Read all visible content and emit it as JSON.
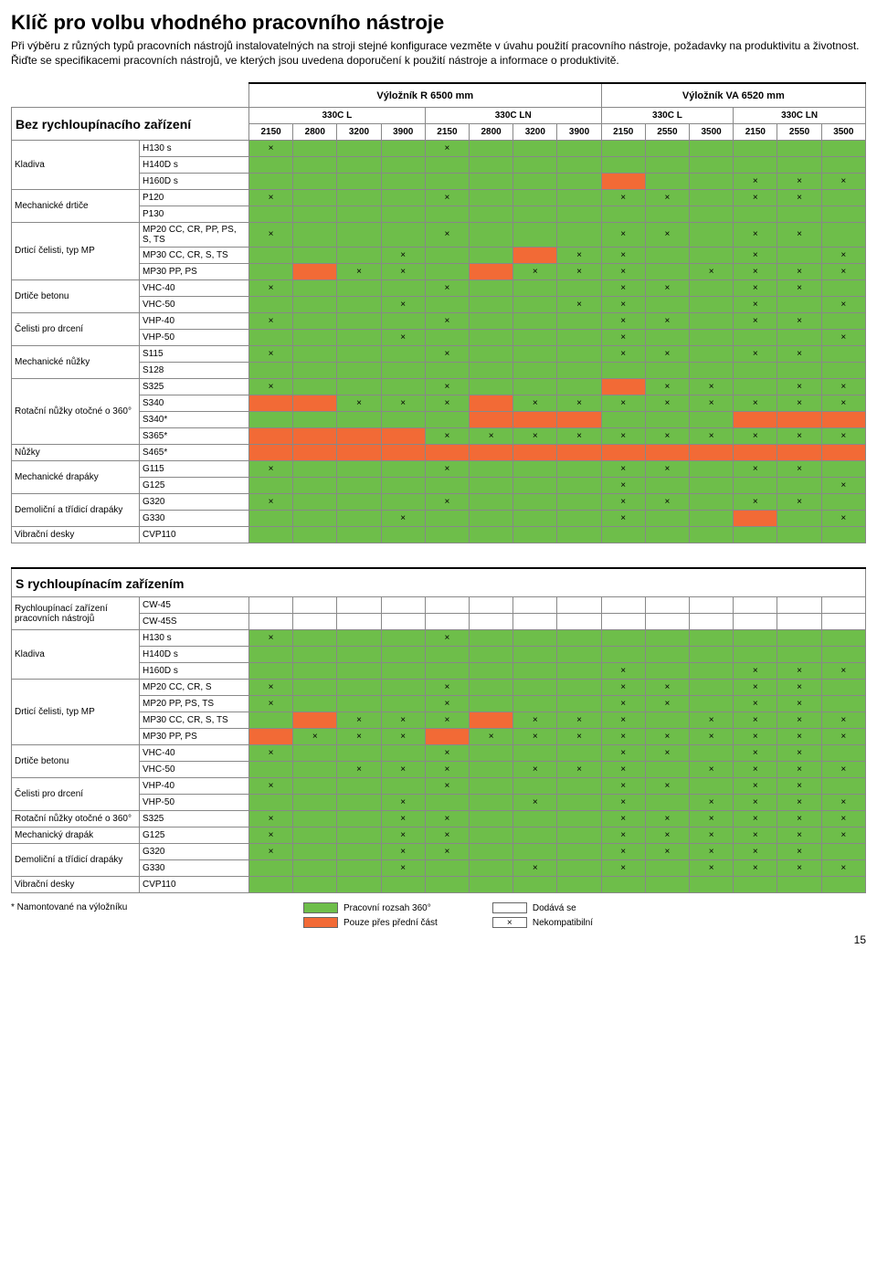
{
  "title": "Klíč pro volbu vhodného pracovního nástroje",
  "intro": "Při výběru z různých typů pracovních nástrojů instalovatelných na stroji stejné konfigurace vezměte v úvahu použití pracovního nástroje, požadavky na produktivitu a životnost. Řiďte se specifikacemi pracovních nástrojů, ve kterých jsou uvedena doporučení k použití nástroje a informace o produktivitě.",
  "colors": {
    "green": "#6ebe4a",
    "orange": "#f26a36",
    "white": "#ffffff",
    "header_gray": "#d9d9d9"
  },
  "boom_headers": [
    "Výložník R 6500 mm",
    "Výložník VA 6520 mm"
  ],
  "arm_headers": [
    "330C L",
    "330C LN",
    "330C L",
    "330C LN"
  ],
  "mm_values": [
    "2150",
    "2800",
    "3200",
    "3900",
    "2150",
    "2800",
    "3200",
    "3900",
    "2150",
    "2550",
    "3500",
    "2150",
    "2550",
    "3500"
  ],
  "mm_label": "mm",
  "section1_title": "Bez rychloupínacího zařízení",
  "section2_title": "S rychloupínacím zařízením",
  "table1_rows": [
    {
      "cat": "Kladiva",
      "tool": "H130 s",
      "cells": [
        "gx",
        "g",
        "g",
        "g",
        "gx",
        "g",
        "g",
        "g",
        "g",
        "g",
        "g",
        "g",
        "g",
        "g"
      ]
    },
    {
      "cat": "",
      "tool": "H140D s",
      "cells": [
        "g",
        "g",
        "g",
        "g",
        "g",
        "g",
        "g",
        "g",
        "g",
        "g",
        "g",
        "g",
        "g",
        "g"
      ]
    },
    {
      "cat": "",
      "tool": "H160D s",
      "cells": [
        "g",
        "g",
        "g",
        "g",
        "g",
        "g",
        "g",
        "g",
        "o",
        "g",
        "g",
        "gx",
        "gx",
        "gx"
      ],
      "lastx": [
        "gx"
      ]
    },
    {
      "cat": "Mechanické drtiče",
      "tool": "P120",
      "cells": [
        "gx",
        "g",
        "g",
        "g",
        "gx",
        "g",
        "g",
        "g",
        "gx",
        "gx",
        "g",
        "gx",
        "gx",
        "g"
      ]
    },
    {
      "cat": "",
      "tool": "P130",
      "cells": [
        "g",
        "g",
        "g",
        "g",
        "g",
        "g",
        "g",
        "g",
        "g",
        "g",
        "g",
        "g",
        "g",
        "g"
      ]
    },
    {
      "cat": "Drticí čelisti, typ MP",
      "tool": "MP20 CC, CR, PP, PS, S, TS",
      "cells": [
        "gx",
        "g",
        "g",
        "g",
        "gx",
        "g",
        "g",
        "g",
        "gx",
        "gx",
        "g",
        "gx",
        "gx",
        "g"
      ]
    },
    {
      "cat": "",
      "tool": "MP30 CC, CR, S, TS",
      "cells": [
        "g",
        "g",
        "g",
        "gx",
        "g",
        "g",
        "o",
        "gx",
        "gx",
        "g",
        "g",
        "gx",
        "g",
        "gx"
      ]
    },
    {
      "cat": "",
      "tool": "MP30 PP, PS",
      "cells": [
        "g",
        "o",
        "gx",
        "gx",
        "g",
        "o",
        "gx",
        "gx",
        "gx",
        "g",
        "gx",
        "gx",
        "gx",
        "gx"
      ]
    },
    {
      "cat": "Drtiče betonu",
      "tool": "VHC-40",
      "cells": [
        "gx",
        "g",
        "g",
        "g",
        "gx",
        "g",
        "g",
        "g",
        "gx",
        "gx",
        "g",
        "gx",
        "gx",
        "g"
      ]
    },
    {
      "cat": "",
      "tool": "VHC-50",
      "cells": [
        "g",
        "g",
        "g",
        "gx",
        "g",
        "g",
        "g",
        "gx",
        "gx",
        "g",
        "g",
        "gx",
        "g",
        "gx"
      ]
    },
    {
      "cat": "Čelisti pro drcení",
      "tool": "VHP-40",
      "cells": [
        "gx",
        "g",
        "g",
        "g",
        "gx",
        "g",
        "g",
        "g",
        "gx",
        "gx",
        "g",
        "gx",
        "gx",
        "g"
      ]
    },
    {
      "cat": "",
      "tool": "VHP-50",
      "cells": [
        "g",
        "g",
        "g",
        "gx",
        "g",
        "g",
        "g",
        "g",
        "gx",
        "g",
        "g",
        "g",
        "g",
        "gx"
      ]
    },
    {
      "cat": "Mechanické nůžky",
      "tool": "S115",
      "cells": [
        "gx",
        "g",
        "g",
        "g",
        "gx",
        "g",
        "g",
        "g",
        "gx",
        "gx",
        "g",
        "gx",
        "gx",
        "g"
      ]
    },
    {
      "cat": "",
      "tool": "S128",
      "cells": [
        "g",
        "g",
        "g",
        "g",
        "g",
        "g",
        "g",
        "g",
        "g",
        "g",
        "g",
        "g",
        "g",
        "g"
      ]
    },
    {
      "cat": "Rotační nůžky otočné o 360°",
      "tool": "S325",
      "cells": [
        "gx",
        "g",
        "g",
        "g",
        "gx",
        "g",
        "g",
        "g",
        "o",
        "gx",
        "gx",
        "g",
        "gx",
        "gx"
      ]
    },
    {
      "cat": "",
      "tool": "S340",
      "cells": [
        "o",
        "o",
        "gx",
        "gx",
        "gx",
        "o",
        "gx",
        "gx",
        "gx",
        "gx",
        "gx",
        "gx",
        "gx",
        "gx"
      ]
    },
    {
      "cat": "",
      "tool": "S340*",
      "cells": [
        "g",
        "g",
        "g",
        "g",
        "g",
        "o",
        "o",
        "o",
        "g",
        "g",
        "g",
        "o",
        "o",
        "o"
      ]
    },
    {
      "cat": "",
      "tool": "S365*",
      "cells": [
        "o",
        "o",
        "o",
        "o",
        "gx",
        "gx",
        "gx",
        "gx",
        "gx",
        "gx",
        "gx",
        "gx",
        "gx",
        "gx"
      ]
    },
    {
      "cat": "Nůžky",
      "tool": "S465*",
      "cells": [
        "o",
        "o",
        "o",
        "o",
        "o",
        "o",
        "o",
        "o",
        "o",
        "o",
        "o",
        "o",
        "o",
        "o"
      ]
    },
    {
      "cat": "Mechanické drapáky",
      "tool": "G115",
      "cells": [
        "gx",
        "g",
        "g",
        "g",
        "gx",
        "g",
        "g",
        "g",
        "gx",
        "gx",
        "g",
        "gx",
        "gx",
        "g"
      ]
    },
    {
      "cat": "",
      "tool": "G125",
      "cells": [
        "g",
        "g",
        "g",
        "g",
        "g",
        "g",
        "g",
        "g",
        "gx",
        "g",
        "g",
        "g",
        "g",
        "gx"
      ]
    },
    {
      "cat": "Demoliční a třídicí drapáky",
      "tool": "G320",
      "cells": [
        "gx",
        "g",
        "g",
        "g",
        "gx",
        "g",
        "g",
        "g",
        "gx",
        "gx",
        "g",
        "gx",
        "gx",
        "g"
      ]
    },
    {
      "cat": "",
      "tool": "G330",
      "cells": [
        "g",
        "g",
        "g",
        "gx",
        "g",
        "g",
        "g",
        "g",
        "gx",
        "g",
        "g",
        "o",
        "g",
        "gx"
      ]
    },
    {
      "cat": "Vibrační desky",
      "tool": "CVP110",
      "cells": [
        "g",
        "g",
        "g",
        "g",
        "g",
        "g",
        "g",
        "g",
        "g",
        "g",
        "g",
        "g",
        "g",
        "g"
      ]
    }
  ],
  "table2_rows": [
    {
      "cat": "Rychloupínací zařízení pracovních nástrojů",
      "tool": "CW-45",
      "cells": [
        "w",
        "w",
        "w",
        "w",
        "w",
        "w",
        "w",
        "w",
        "w",
        "w",
        "w",
        "w",
        "w",
        "w"
      ]
    },
    {
      "cat": "",
      "tool": "CW-45S",
      "cells": [
        "w",
        "w",
        "w",
        "w",
        "w",
        "w",
        "w",
        "w",
        "w",
        "w",
        "w",
        "w",
        "w",
        "w"
      ]
    },
    {
      "cat": "Kladiva",
      "tool": "H130 s",
      "cells": [
        "gx",
        "g",
        "g",
        "g",
        "gx",
        "g",
        "g",
        "g",
        "g",
        "g",
        "g",
        "g",
        "g",
        "g"
      ]
    },
    {
      "cat": "",
      "tool": "H140D s",
      "cells": [
        "g",
        "g",
        "g",
        "g",
        "g",
        "g",
        "g",
        "g",
        "g",
        "g",
        "g",
        "g",
        "g",
        "g"
      ]
    },
    {
      "cat": "",
      "tool": "H160D s",
      "cells": [
        "g",
        "g",
        "g",
        "g",
        "g",
        "g",
        "g",
        "g",
        "gx",
        "g",
        "g",
        "gx",
        "gx",
        "gx"
      ]
    },
    {
      "cat": "Drticí čelisti, typ MP",
      "tool": "MP20 CC, CR, S",
      "cells": [
        "gx",
        "g",
        "g",
        "g",
        "gx",
        "g",
        "g",
        "g",
        "gx",
        "gx",
        "g",
        "gx",
        "gx",
        "g"
      ]
    },
    {
      "cat": "",
      "tool": "MP20 PP, PS, TS",
      "cells": [
        "gx",
        "g",
        "g",
        "g",
        "gx",
        "g",
        "g",
        "g",
        "gx",
        "gx",
        "g",
        "gx",
        "gx",
        "g"
      ]
    },
    {
      "cat": "",
      "tool": "MP30 CC, CR, S, TS",
      "cells": [
        "g",
        "o",
        "gx",
        "gx",
        "gx",
        "o",
        "gx",
        "gx",
        "gx",
        "g",
        "gx",
        "gx",
        "gx",
        "gx"
      ]
    },
    {
      "cat": "",
      "tool": "MP30 PP, PS",
      "cells": [
        "o",
        "gx",
        "gx",
        "gx",
        "o",
        "gx",
        "gx",
        "gx",
        "gx",
        "gx",
        "gx",
        "gx",
        "gx",
        "gx"
      ]
    },
    {
      "cat": "Drtiče betonu",
      "tool": "VHC-40",
      "cells": [
        "gx",
        "g",
        "g",
        "g",
        "gx",
        "g",
        "g",
        "g",
        "gx",
        "gx",
        "g",
        "gx",
        "gx",
        "g"
      ]
    },
    {
      "cat": "",
      "tool": "VHC-50",
      "cells": [
        "g",
        "g",
        "gx",
        "gx",
        "gx",
        "g",
        "gx",
        "gx",
        "gx",
        "g",
        "gx",
        "gx",
        "gx",
        "gx"
      ]
    },
    {
      "cat": "Čelisti pro drcení",
      "tool": "VHP-40",
      "cells": [
        "gx",
        "g",
        "g",
        "g",
        "gx",
        "g",
        "g",
        "g",
        "gx",
        "gx",
        "g",
        "gx",
        "gx",
        "g"
      ]
    },
    {
      "cat": "",
      "tool": "VHP-50",
      "cells": [
        "g",
        "g",
        "g",
        "gx",
        "g",
        "g",
        "gx",
        "g",
        "gx",
        "g",
        "gx",
        "gx",
        "gx",
        "gx"
      ]
    },
    {
      "cat": "Rotační nůžky otočné o 360°",
      "tool": "S325",
      "cells": [
        "gx",
        "g",
        "g",
        "gx",
        "gx",
        "g",
        "g",
        "g",
        "gx",
        "gx",
        "gx",
        "gx",
        "gx",
        "gx"
      ]
    },
    {
      "cat": "Mechanický drapák",
      "tool": "G125",
      "cells": [
        "gx",
        "g",
        "g",
        "gx",
        "gx",
        "g",
        "g",
        "g",
        "gx",
        "gx",
        "gx",
        "gx",
        "gx",
        "gx"
      ]
    },
    {
      "cat": "Demoliční a třídicí drapáky",
      "tool": "G320",
      "cells": [
        "gx",
        "g",
        "g",
        "gx",
        "gx",
        "g",
        "g",
        "g",
        "gx",
        "gx",
        "gx",
        "gx",
        "gx",
        "g"
      ]
    },
    {
      "cat": "",
      "tool": "G330",
      "cells": [
        "g",
        "g",
        "g",
        "gx",
        "g",
        "g",
        "gx",
        "g",
        "gx",
        "g",
        "gx",
        "gx",
        "gx",
        "gx"
      ]
    },
    {
      "cat": "Vibrační desky",
      "tool": "CVP110",
      "cells": [
        "g",
        "g",
        "g",
        "g",
        "g",
        "g",
        "g",
        "g",
        "g",
        "g",
        "g",
        "g",
        "g",
        "g"
      ]
    }
  ],
  "footnote": "* Namontované na výložníku",
  "legend": {
    "green_label": "Pracovní rozsah 360°",
    "orange_label": "Pouze přes přední část",
    "supplied": "Dodává se",
    "incompatible": "Nekompatibilní",
    "x": "×"
  },
  "page_number": "15"
}
